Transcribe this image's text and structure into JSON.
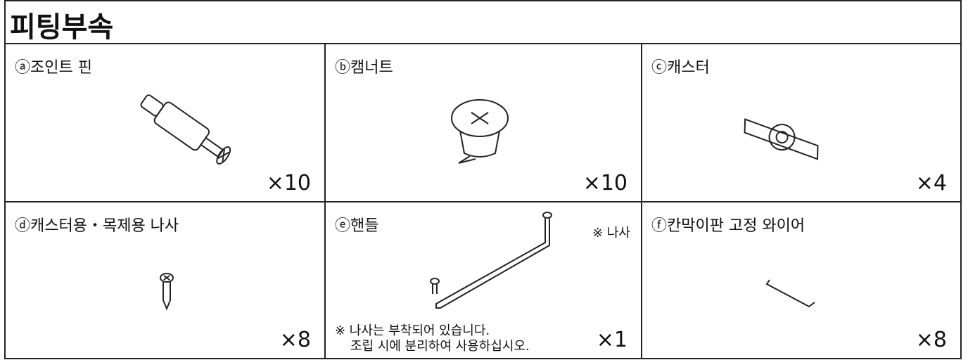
{
  "header": {
    "title": "피팅부속"
  },
  "cells": [
    {
      "label": "ⓐ조인트 핀",
      "count": "×10"
    },
    {
      "label": "ⓑ캠너트",
      "count": "×10"
    },
    {
      "label": "ⓒ캐스터",
      "count": "×4"
    },
    {
      "label": "ⓓ캐스터용・목제용 나사",
      "count": "×8"
    },
    {
      "label": "ⓔ핸들",
      "count": "×1",
      "note": "※ 나사",
      "footnote": [
        "※ 나사는 부착되어 있습니다.",
        "조립 시에 분리하여 사용하십시오."
      ]
    },
    {
      "label": "ⓕ칸막이판 고정 와이어",
      "count": "×8"
    }
  ]
}
